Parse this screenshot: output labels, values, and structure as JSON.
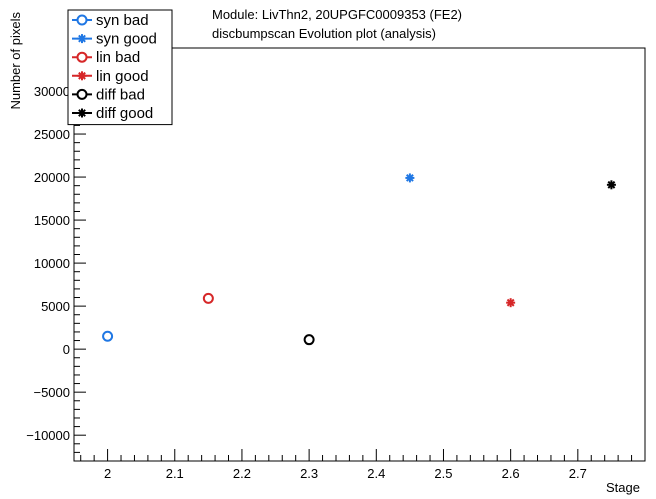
{
  "chart_data": {
    "type": "scatter",
    "title": "Module: LivThn2, 20UPGFC0009353 (FE2)",
    "subtitle": "discbumpscan Evolution plot (analysis)",
    "xlabel": "Stage",
    "ylabel": "Number of pixels",
    "xlim": [
      1.95,
      2.8
    ],
    "ylim": [
      -13000,
      35000
    ],
    "x_ticks": [
      2,
      2.1,
      2.2,
      2.3,
      2.4,
      2.5,
      2.6,
      2.7
    ],
    "x_tick_labels": [
      "2",
      "2.1",
      "2.2",
      "2.3",
      "2.4",
      "2.5",
      "2.6",
      "2.7"
    ],
    "y_ticks": [
      -10000,
      -5000,
      0,
      5000,
      10000,
      15000,
      20000,
      25000,
      30000
    ],
    "y_tick_labels": [
      "−10000",
      "−5000",
      "0",
      "5000",
      "10000",
      "15000",
      "20000",
      "25000",
      "30000"
    ],
    "grid": false,
    "legend_position": "top-left",
    "series": [
      {
        "name": "syn bad",
        "color": "#1f77e4",
        "marker": "open-circle",
        "points": [
          {
            "x": 2.0,
            "y": 1500
          }
        ]
      },
      {
        "name": "syn good",
        "color": "#1f77e4",
        "marker": "star",
        "points": [
          {
            "x": 2.45,
            "y": 19900
          }
        ]
      },
      {
        "name": "lin bad",
        "color": "#d62728",
        "marker": "open-circle",
        "points": [
          {
            "x": 2.15,
            "y": 5900
          }
        ]
      },
      {
        "name": "lin good",
        "color": "#d62728",
        "marker": "star",
        "points": [
          {
            "x": 2.6,
            "y": 5400
          }
        ]
      },
      {
        "name": "diff bad",
        "color": "#000000",
        "marker": "open-circle",
        "points": [
          {
            "x": 2.3,
            "y": 1100
          }
        ]
      },
      {
        "name": "diff good",
        "color": "#000000",
        "marker": "star",
        "points": [
          {
            "x": 2.75,
            "y": 19100
          }
        ]
      }
    ]
  }
}
